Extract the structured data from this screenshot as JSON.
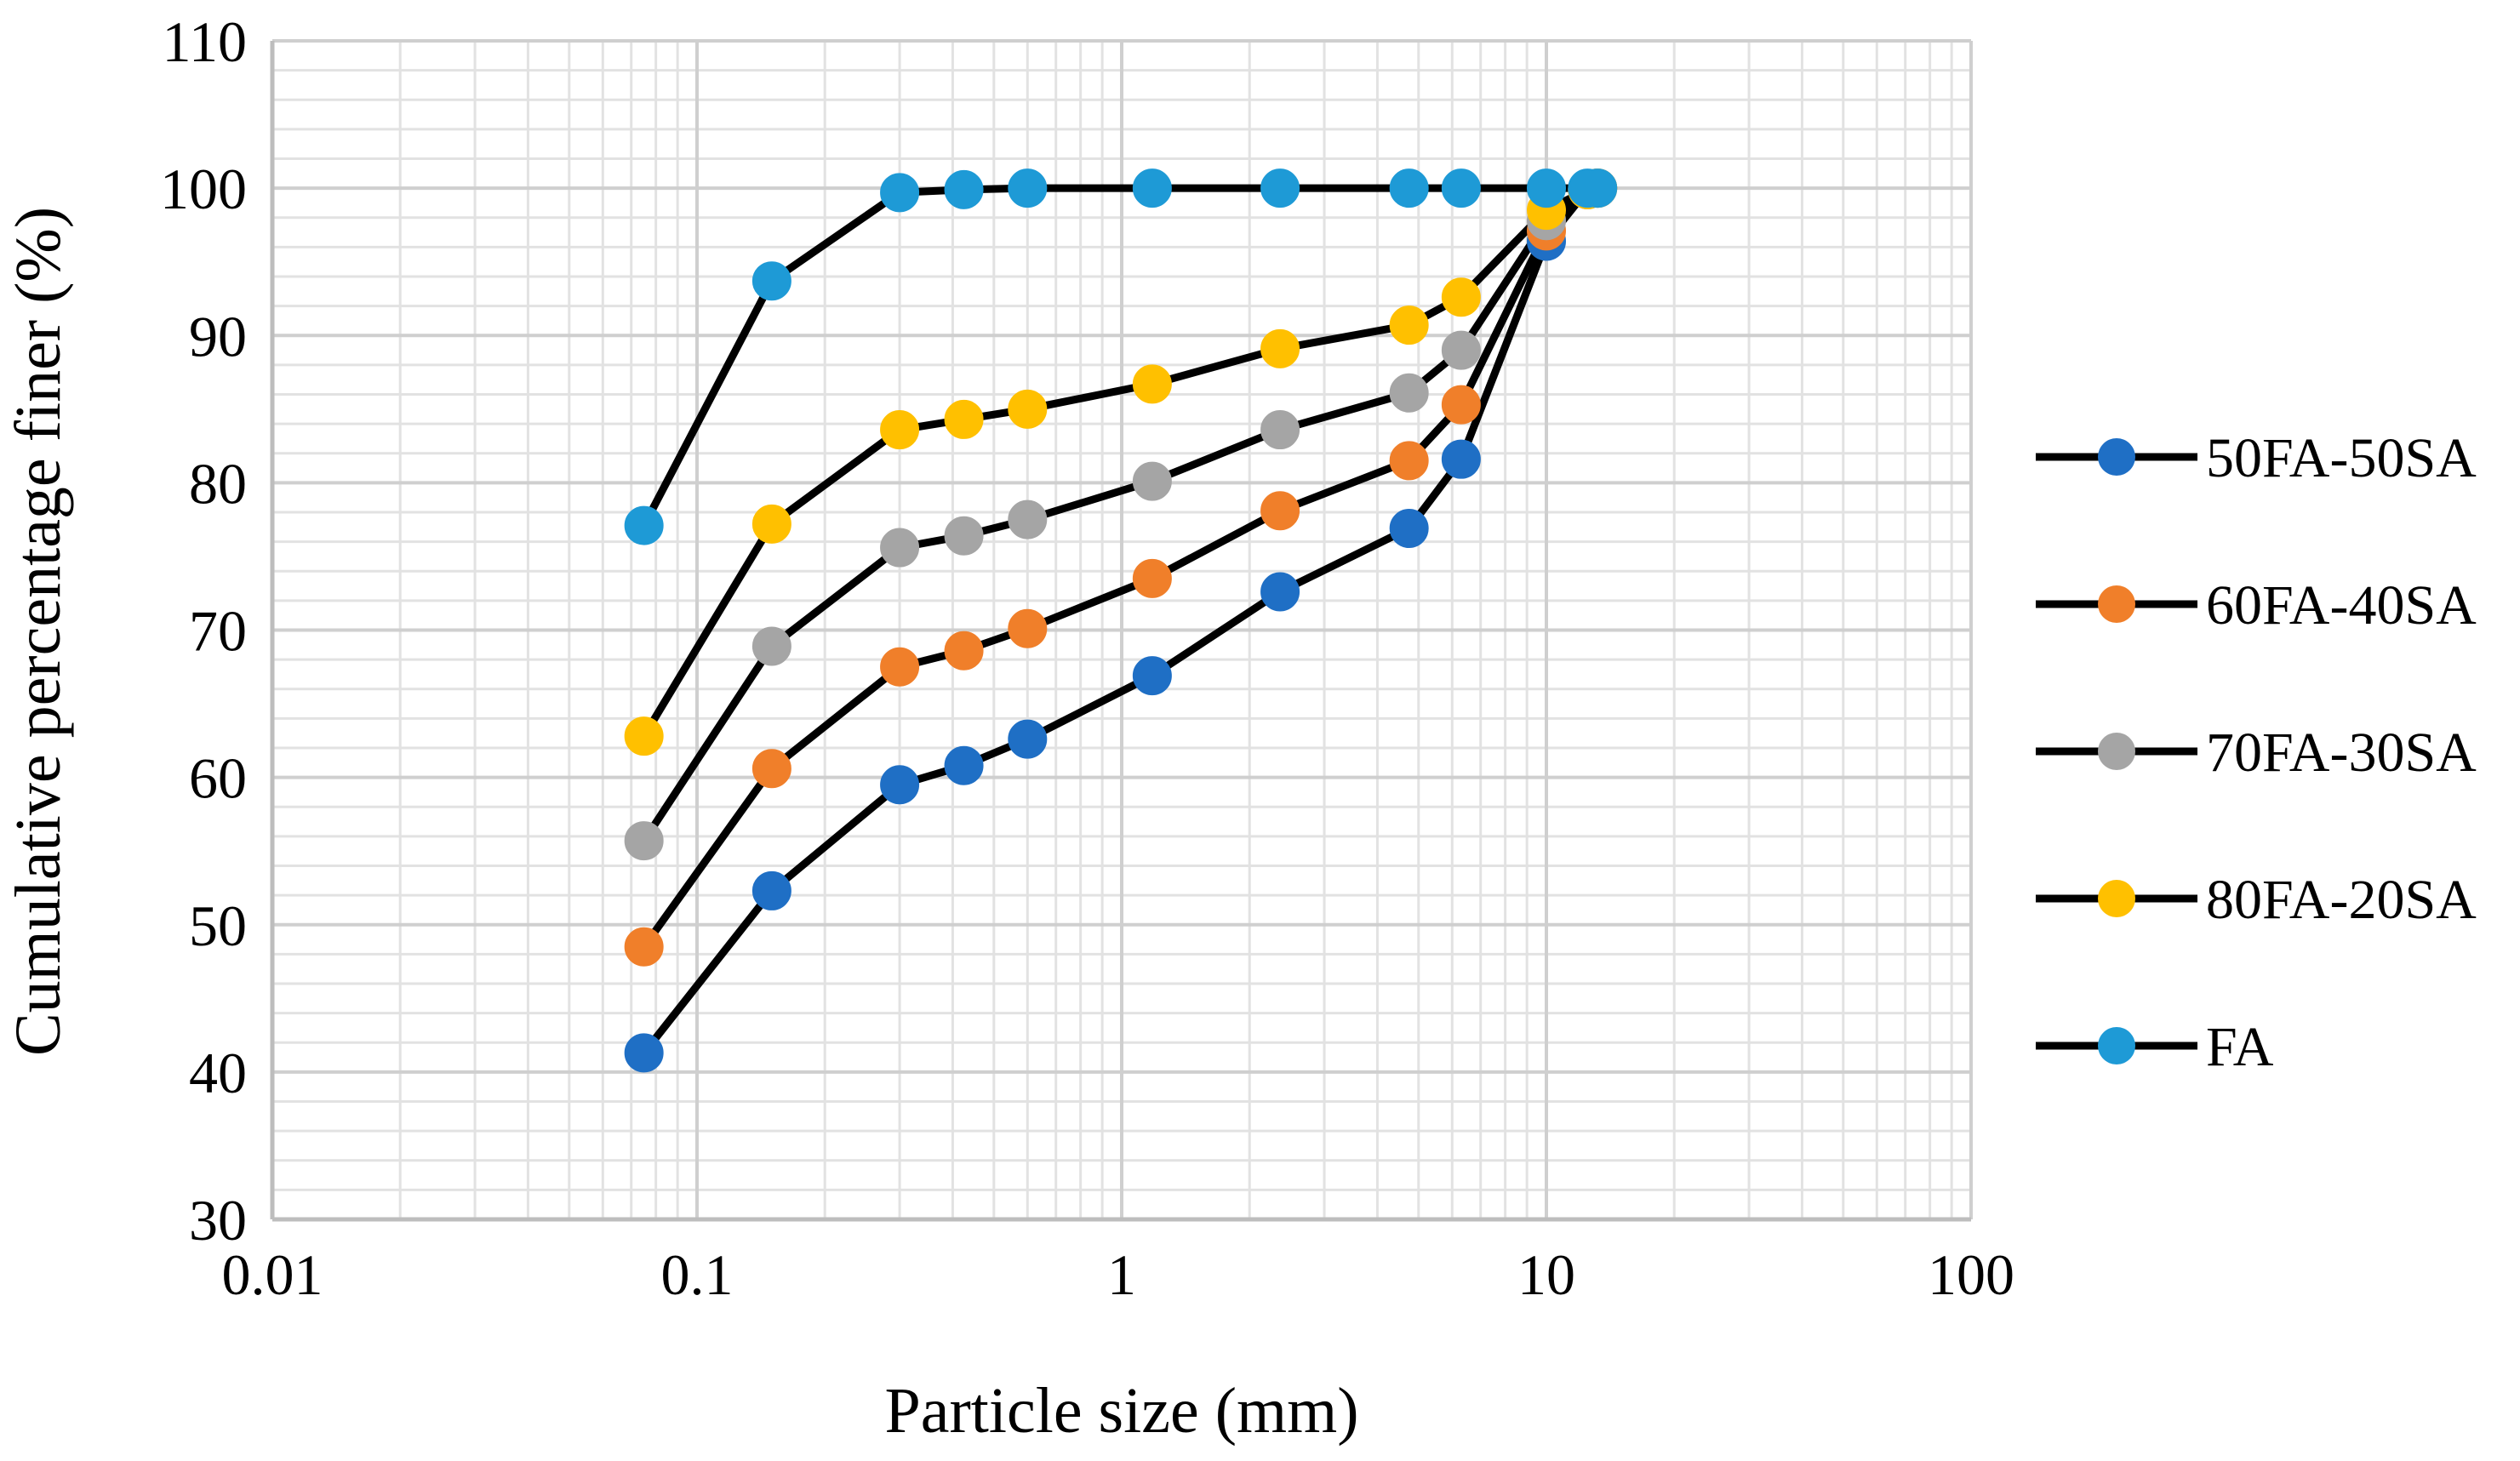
{
  "chart_data": {
    "type": "line",
    "x_scale": "log",
    "xlabel": "Particle size (mm)",
    "ylabel": "Cumulative percentage finer (%)",
    "xlim": [
      0.01,
      100
    ],
    "ylim": [
      30,
      110
    ],
    "x_ticks": [
      {
        "value": 0.01,
        "label": "0.01"
      },
      {
        "value": 0.1,
        "label": "0.1"
      },
      {
        "value": 1,
        "label": "1"
      },
      {
        "value": 10,
        "label": "10"
      },
      {
        "value": 100,
        "label": "100"
      }
    ],
    "y_ticks": [
      {
        "value": 30,
        "label": "30"
      },
      {
        "value": 40,
        "label": "40"
      },
      {
        "value": 50,
        "label": "50"
      },
      {
        "value": 60,
        "label": "60"
      },
      {
        "value": 70,
        "label": "70"
      },
      {
        "value": 80,
        "label": "80"
      },
      {
        "value": 90,
        "label": "90"
      },
      {
        "value": 100,
        "label": "100"
      },
      {
        "value": 110,
        "label": "110"
      }
    ],
    "grid": true,
    "legend_position": "right",
    "line_color": "#000000",
    "series": [
      {
        "name": "50FA-50SA",
        "color": "#1F6FC5",
        "x": [
          0.075,
          0.15,
          0.3,
          0.425,
          0.6,
          1.18,
          2.36,
          4.75,
          6.3,
          10,
          12.5,
          13.2
        ],
        "y": [
          41.3,
          52.3,
          59.5,
          60.8,
          62.6,
          66.9,
          72.6,
          76.9,
          81.6,
          96.4,
          99.9,
          100
        ]
      },
      {
        "name": "60FA-40SA",
        "color": "#F07F2A",
        "x": [
          0.075,
          0.15,
          0.3,
          0.425,
          0.6,
          1.18,
          2.36,
          4.75,
          6.3,
          10,
          12.5,
          13.2
        ],
        "y": [
          48.5,
          60.6,
          67.5,
          68.6,
          70.1,
          73.5,
          78.1,
          81.5,
          85.3,
          97.1,
          99.9,
          100
        ]
      },
      {
        "name": "70FA-30SA",
        "color": "#A5A5A5",
        "x": [
          0.075,
          0.15,
          0.3,
          0.425,
          0.6,
          1.18,
          2.36,
          4.75,
          6.3,
          10,
          12.5,
          13.2
        ],
        "y": [
          55.7,
          68.9,
          75.6,
          76.4,
          77.5,
          80.1,
          83.6,
          86.1,
          89.0,
          97.8,
          99.9,
          100
        ]
      },
      {
        "name": "80FA-20SA",
        "color": "#FFC000",
        "x": [
          0.075,
          0.15,
          0.3,
          0.425,
          0.6,
          1.18,
          2.36,
          4.75,
          6.3,
          10,
          12.5,
          13.2
        ],
        "y": [
          62.8,
          77.2,
          83.6,
          84.3,
          85.0,
          86.7,
          89.1,
          90.7,
          92.6,
          98.5,
          99.9,
          100
        ]
      },
      {
        "name": "FA",
        "color": "#1E9AD6",
        "x": [
          0.075,
          0.15,
          0.3,
          0.425,
          0.6,
          1.18,
          2.36,
          4.75,
          6.3,
          10,
          12.5,
          13.2
        ],
        "y": [
          77.1,
          93.7,
          99.7,
          99.9,
          100,
          100,
          100,
          100,
          100,
          100,
          100,
          100
        ]
      }
    ]
  }
}
